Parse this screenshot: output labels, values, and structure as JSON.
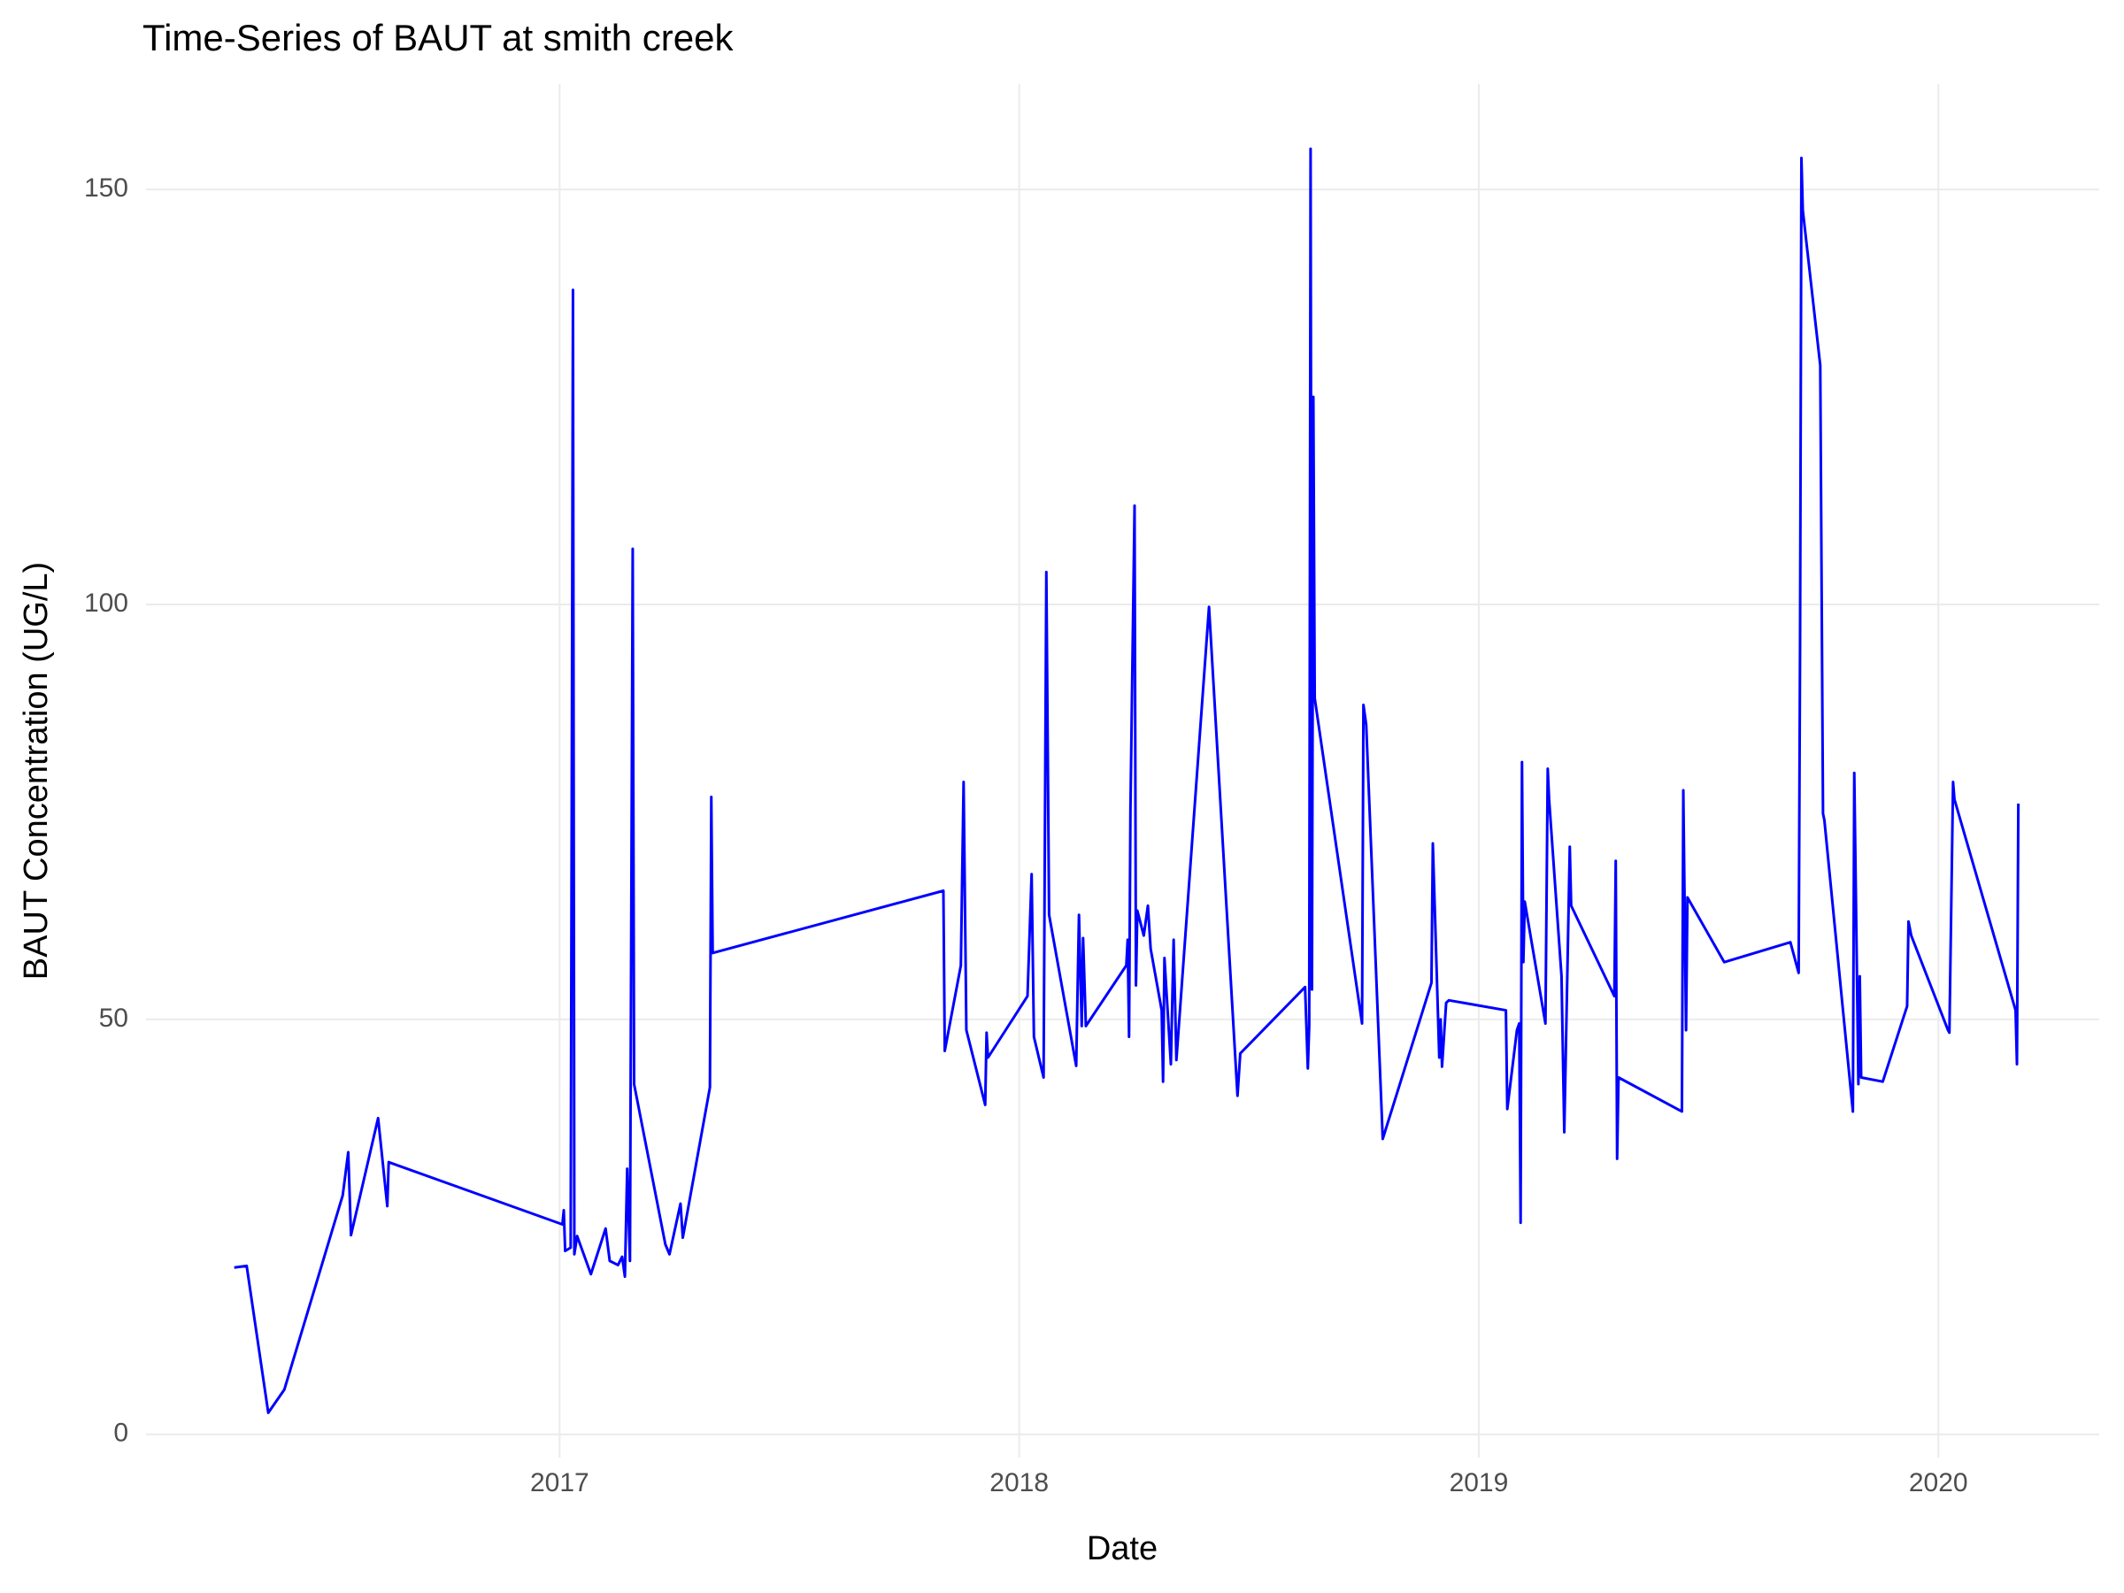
{
  "chart_data": {
    "type": "line",
    "title": "Time-Series of BAUT at smith creek",
    "x_label": "Date",
    "y_label": "BAUT Concentration (UG/L)",
    "color": "#0000ff",
    "grid": true,
    "xlim": [
      2016.1,
      2020.35
    ],
    "ylim": [
      -2.8,
      162.7
    ],
    "xticks": [
      2017,
      2018,
      2019,
      2020
    ],
    "yticks": [
      0,
      50,
      100,
      150
    ],
    "x": [
      2016.292,
      2016.319,
      2016.366,
      2016.401,
      2016.528,
      2016.54,
      2016.546,
      2016.605,
      2016.625,
      2016.628,
      2017.006,
      2017.009,
      2017.012,
      2017.024,
      2017.029,
      2017.032,
      2017.038,
      2017.068,
      2017.1,
      2017.109,
      2017.127,
      2017.136,
      2017.142,
      2017.147,
      2017.153,
      2017.159,
      2017.162,
      2017.23,
      2017.239,
      2017.263,
      2017.268,
      2017.327,
      2017.33,
      2017.333,
      2017.835,
      2017.838,
      2017.873,
      2017.879,
      2017.885,
      2017.926,
      2017.929,
      2017.932,
      2018.018,
      2018.027,
      2018.032,
      2018.053,
      2018.059,
      2018.065,
      2018.124,
      2018.13,
      2018.136,
      2018.139,
      2018.145,
      2018.233,
      2018.236,
      2018.239,
      2018.242,
      2018.251,
      2018.254,
      2018.257,
      2018.271,
      2018.28,
      2018.286,
      2018.31,
      2018.313,
      2018.316,
      2018.33,
      2018.336,
      2018.342,
      2018.413,
      2018.475,
      2018.481,
      2018.622,
      2018.628,
      2018.631,
      2018.634,
      2018.637,
      2018.64,
      2018.643,
      2018.746,
      2018.749,
      2018.755,
      2018.791,
      2018.897,
      2018.9,
      2018.914,
      2018.917,
      2018.92,
      2018.929,
      2018.935,
      2019.059,
      2019.062,
      2019.083,
      2019.088,
      2019.091,
      2019.094,
      2019.097,
      2019.1,
      2019.145,
      2019.15,
      2019.153,
      2019.18,
      2019.186,
      2019.198,
      2019.201,
      2019.295,
      2019.298,
      2019.301,
      2019.304,
      2019.442,
      2019.445,
      2019.451,
      2019.454,
      2019.534,
      2019.678,
      2019.696,
      2019.699,
      2019.702,
      2019.705,
      2019.743,
      2019.749,
      2019.752,
      2019.814,
      2019.817,
      2019.826,
      2019.829,
      2019.832,
      2019.879,
      2019.932,
      2019.935,
      2019.941,
      2020.021,
      2020.024,
      2020.032,
      2020.035,
      2020.168,
      2020.171,
      2020.174
    ],
    "values": [
      20.1,
      20.3,
      2.6,
      5.4,
      28.8,
      34.0,
      24.0,
      38.1,
      27.5,
      32.8,
      25.3,
      27.0,
      22.1,
      22.5,
      137.9,
      21.7,
      23.9,
      19.3,
      24.8,
      20.9,
      20.4,
      21.4,
      19.0,
      32.0,
      20.9,
      106.7,
      42.2,
      22.9,
      21.7,
      27.8,
      23.7,
      41.8,
      76.8,
      58.0,
      65.5,
      46.2,
      56.5,
      78.6,
      48.7,
      39.7,
      48.4,
      45.4,
      52.8,
      67.5,
      47.9,
      43.0,
      103.9,
      62.6,
      44.4,
      62.6,
      49.2,
      59.8,
      49.2,
      56.5,
      59.6,
      47.9,
      75.2,
      111.9,
      54.1,
      63.1,
      60.1,
      63.7,
      58.5,
      51.1,
      42.5,
      57.4,
      44.6,
      59.6,
      45.1,
      99.7,
      40.8,
      45.9,
      53.9,
      44.1,
      49.2,
      154.9,
      53.6,
      125.0,
      88.7,
      49.5,
      87.9,
      85.5,
      35.6,
      54.4,
      71.2,
      45.4,
      50.0,
      44.3,
      52.0,
      52.3,
      51.1,
      39.2,
      48.7,
      49.5,
      25.5,
      81.0,
      56.9,
      64.2,
      49.5,
      80.2,
      76.5,
      55.2,
      36.4,
      70.8,
      63.7,
      52.8,
      69.1,
      33.2,
      43.0,
      38.9,
      77.6,
      48.7,
      64.7,
      56.9,
      59.3,
      55.6,
      94.4,
      153.8,
      147.5,
      128.8,
      74.8,
      74.0,
      38.9,
      79.7,
      42.2,
      55.2,
      43.0,
      42.5,
      51.6,
      61.8,
      60.1,
      48.7,
      48.4,
      78.6,
      76.5,
      51.1,
      44.6,
      76.0
    ]
  }
}
